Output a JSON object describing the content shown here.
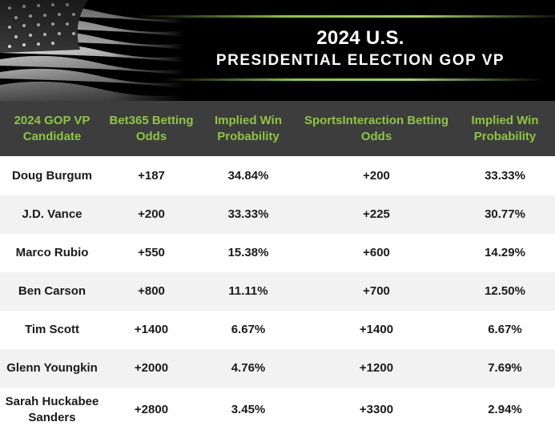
{
  "banner": {
    "title_line1": "2024 U.S.",
    "title_line2": "PRESIDENTIAL ELECTION GOP VP"
  },
  "table": {
    "headers": [
      "2024 GOP VP Candidate",
      "Bet365 Betting Odds",
      "Implied Win Probability",
      "SportsInteraction Betting Odds",
      "Implied Win Probability"
    ],
    "rows": [
      [
        "Doug Burgum",
        "+187",
        "34.84%",
        "+200",
        "33.33%"
      ],
      [
        "J.D. Vance",
        "+200",
        "33.33%",
        "+225",
        "30.77%"
      ],
      [
        "Marco Rubio",
        "+550",
        "15.38%",
        "+600",
        "14.29%"
      ],
      [
        "Ben Carson",
        "+800",
        "11.11%",
        "+700",
        "12.50%"
      ],
      [
        "Tim Scott",
        "+1400",
        "6.67%",
        "+1400",
        "6.67%"
      ],
      [
        "Glenn Youngkin",
        "+2000",
        "4.76%",
        "+1200",
        "7.69%"
      ],
      [
        "Sarah Huckabee Sanders",
        "+2800",
        "3.45%",
        "+3300",
        "2.94%"
      ]
    ]
  },
  "colors": {
    "banner_bg": "#000000",
    "header_bg": "#3d3d3d",
    "header_text": "#8dc63f",
    "row_alt": "#f2f2f2"
  }
}
